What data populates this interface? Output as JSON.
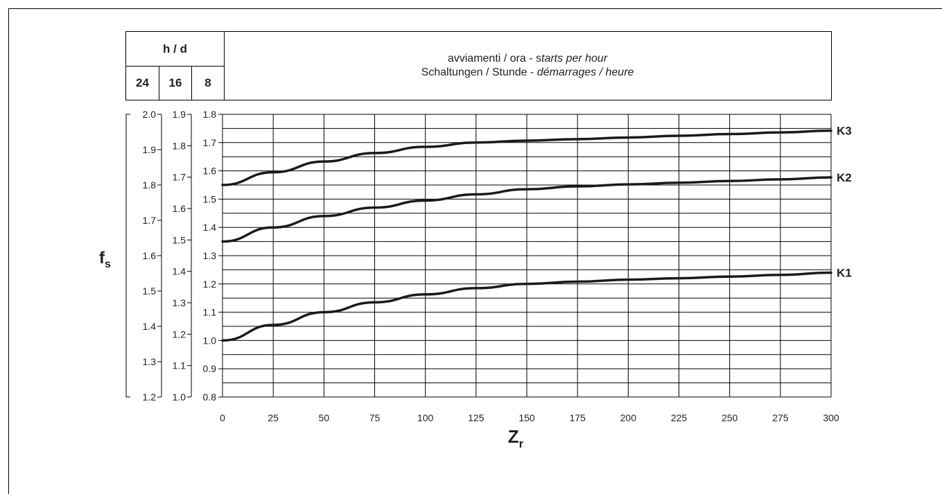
{
  "header": {
    "hours_per_day_label": "h / d",
    "hours_columns": [
      "24",
      "16",
      "8"
    ],
    "starts_line1_plain": "avviamenti / ora - s",
    "starts_line1_italic": "tarts per hour",
    "starts_line2_plain": "Schaltungen / Stunde - ",
    "starts_line2_italic": "démarrages / heure"
  },
  "chart_data": {
    "type": "line",
    "xlabel": "Z",
    "xlabel_sub": "r",
    "ylabel": "f",
    "ylabel_sub": "s",
    "xlim": [
      0,
      300
    ],
    "x_ticks": [
      "0",
      "25",
      "50",
      "75",
      "100",
      "125",
      "150",
      "175",
      "200",
      "225",
      "250",
      "275",
      "300"
    ],
    "ylim": [
      0.8,
      1.8
    ],
    "y_ticks_8h": [
      "0.8",
      "0.9",
      "1.0",
      "1.1",
      "1.2",
      "1.3",
      "1.4",
      "1.5",
      "1.6",
      "1.7",
      "1.8"
    ],
    "y_ticks_16h": [
      "1.0",
      "1.1",
      "1.2",
      "1.3",
      "1.4",
      "1.5",
      "1.6",
      "1.7",
      "1.8",
      "1.9"
    ],
    "y_ticks_24h": [
      "1.2",
      "1.3",
      "1.4",
      "1.5",
      "1.6",
      "1.7",
      "1.8",
      "1.9",
      "2.0"
    ],
    "grid": true,
    "series": [
      {
        "name": "K1",
        "x": [
          0,
          25,
          50,
          75,
          100,
          125,
          150,
          175,
          200,
          225,
          250,
          275,
          300
        ],
        "y": [
          1.0,
          1.055,
          1.1,
          1.135,
          1.163,
          1.185,
          1.2,
          1.208,
          1.215,
          1.22,
          1.226,
          1.232,
          1.24
        ]
      },
      {
        "name": "K2",
        "x": [
          0,
          25,
          50,
          75,
          100,
          125,
          150,
          175,
          200,
          225,
          250,
          275,
          300
        ],
        "y": [
          1.35,
          1.4,
          1.44,
          1.47,
          1.495,
          1.517,
          1.535,
          1.545,
          1.552,
          1.558,
          1.564,
          1.57,
          1.577
        ]
      },
      {
        "name": "K3",
        "x": [
          0,
          25,
          50,
          75,
          100,
          125,
          150,
          175,
          200,
          225,
          250,
          275,
          300
        ],
        "y": [
          1.55,
          1.595,
          1.633,
          1.663,
          1.685,
          1.7,
          1.707,
          1.712,
          1.718,
          1.724,
          1.73,
          1.736,
          1.742
        ]
      }
    ]
  }
}
